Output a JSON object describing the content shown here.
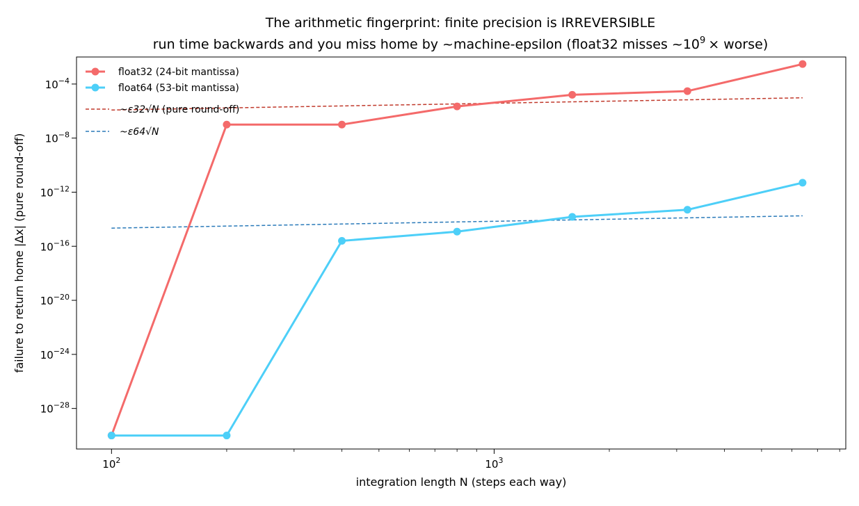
{
  "chart_data": {
    "type": "line",
    "title_line1": "The arithmetic fingerprint: finite precision is IRREVERSIBLE",
    "title_line2_prefix": "run time backwards and you miss home by ~machine-epsilon (float32 misses ~10",
    "title_line2_sup": "9",
    "title_line2_suffix": "× worse)",
    "xlabel": "integration length N (steps each way)",
    "ylabel": "failure to return home  |Δx|  (pure round-off)",
    "xscale": "log",
    "yscale": "log",
    "xlim": [
      81,
      8300
    ],
    "ylim": [
      1e-31,
      0.01
    ],
    "x_major_ticks": [
      {
        "value": 100,
        "exp": "2"
      },
      {
        "value": 1000,
        "exp": "3"
      }
    ],
    "x_minor_ticks": [
      200,
      300,
      400,
      500,
      600,
      700,
      800,
      900,
      2000,
      3000,
      4000,
      5000,
      6000,
      7000,
      8000
    ],
    "y_ticks": [
      {
        "value": 1e-28,
        "exp": "−28"
      },
      {
        "value": 1e-24,
        "exp": "−24"
      },
      {
        "value": 1e-20,
        "exp": "−20"
      },
      {
        "value": 1e-16,
        "exp": "−16"
      },
      {
        "value": 1e-12,
        "exp": "−12"
      },
      {
        "value": 1e-08,
        "exp": "−8"
      },
      {
        "value": 0.0001,
        "exp": "−4"
      }
    ],
    "x": [
      100,
      200,
      400,
      800,
      1600,
      3200,
      6400
    ],
    "series": [
      {
        "name": "float32 (24-bit mantissa)",
        "color": "#f46a6a",
        "style": "solid-marker",
        "values": [
          1e-30,
          1e-07,
          1e-07,
          2.2e-06,
          1.6e-05,
          3e-05,
          0.003
        ]
      },
      {
        "name": "float64 (53-bit mantissa)",
        "color": "#4dcff8",
        "style": "solid-marker",
        "values": [
          1e-30,
          1e-30,
          2.5e-16,
          1.2e-15,
          1.5e-14,
          5e-14,
          5e-12
        ]
      },
      {
        "name_prefix": "~",
        "name_math": "ε32√N",
        "name_suffix": " (pure round-off)",
        "color": "#c0392b",
        "style": "dashed",
        "values": [
          1.2e-06,
          1.7e-06,
          2.4e-06,
          3.4e-06,
          4.8e-06,
          6.8e-06,
          9.6e-06
        ]
      },
      {
        "name_prefix": "~",
        "name_math": "ε64√N",
        "name_suffix": "",
        "color": "#2a7ab9",
        "style": "dashed",
        "values": [
          2.2e-15,
          3.1e-15,
          4.4e-15,
          6.3e-15,
          8.9e-15,
          1.26e-14,
          1.78e-14
        ]
      }
    ],
    "legend_position": "top-left",
    "grid": false
  }
}
